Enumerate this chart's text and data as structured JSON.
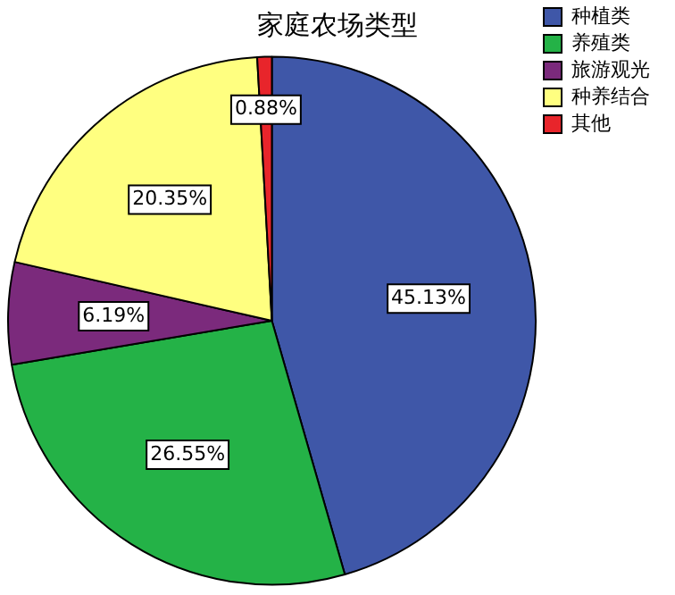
{
  "chart_data": {
    "type": "pie",
    "title": "家庭农场类型",
    "categories": [
      "种植类",
      "养殖类",
      "旅游观光",
      "种养结合",
      "其他"
    ],
    "values": [
      45.13,
      26.55,
      6.19,
      20.35,
      0.88
    ],
    "value_labels": [
      "45.13%",
      "26.55%",
      "6.19%",
      "20.35%",
      "0.88%"
    ],
    "colors": [
      "#3f57a8",
      "#24b247",
      "#7b2a7c",
      "#ffff80",
      "#e8252b"
    ],
    "legend": "top right"
  }
}
